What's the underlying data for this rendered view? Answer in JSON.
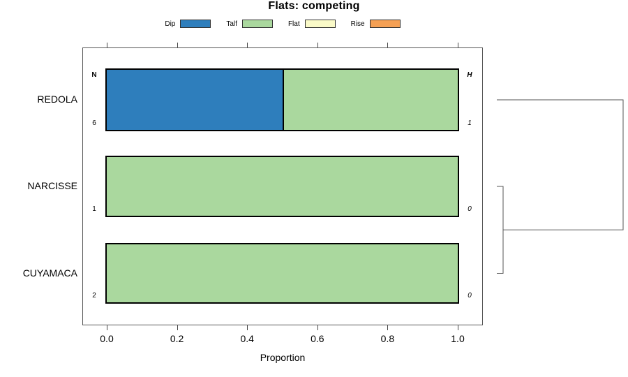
{
  "title": "Flats: competing",
  "legend": {
    "items": [
      {
        "label": "Dip",
        "color": "#2E7EBC"
      },
      {
        "label": "Talf",
        "color": "#AAD89E"
      },
      {
        "label": "Flat",
        "color": "#FAFAC8"
      },
      {
        "label": "Rise",
        "color": "#F5A054"
      }
    ]
  },
  "chart_data": {
    "type": "bar",
    "variant": "horizontal_stacked_proportion",
    "title": "Flats: competing",
    "xlabel": "Proportion",
    "xlim": [
      0,
      1
    ],
    "xticks": [
      "0.0",
      "0.2",
      "0.4",
      "0.6",
      "0.8",
      "1.0"
    ],
    "xtick_values": [
      0,
      0.2,
      0.4,
      0.6,
      0.8,
      1.0
    ],
    "grid": false,
    "legend_position": "top",
    "categories": [
      "REDOLA",
      "NARCISSE",
      "CUYAMACA"
    ],
    "series": [
      {
        "name": "Dip",
        "color": "#2E7EBC",
        "values": [
          0.5,
          0,
          0
        ]
      },
      {
        "name": "Talf",
        "color": "#AAD89E",
        "values": [
          0.5,
          1,
          1
        ]
      },
      {
        "name": "Flat",
        "color": "#FAFAC8",
        "values": [
          0,
          0,
          0
        ]
      },
      {
        "name": "Rise",
        "color": "#F5A054",
        "values": [
          0,
          0,
          0
        ]
      }
    ],
    "annotations": {
      "left_header": "N",
      "right_header": "H",
      "left_values": [
        "6",
        "1",
        "2"
      ],
      "right_values": [
        "1",
        "0",
        "0"
      ]
    },
    "dendrogram": {
      "orientation": "right",
      "merges": [
        {
          "clusters": [
            "NARCISSE",
            "CUYAMACA"
          ],
          "height": "small"
        },
        {
          "clusters": [
            "REDOLA",
            "NARCISSE+CUYAMACA"
          ],
          "height": "large"
        }
      ]
    }
  },
  "colors": {
    "background": "#FFFFFF",
    "bar_border": "#000000",
    "axis": "#555555",
    "dendrogram_line": "#555555",
    "text": "#000000"
  }
}
